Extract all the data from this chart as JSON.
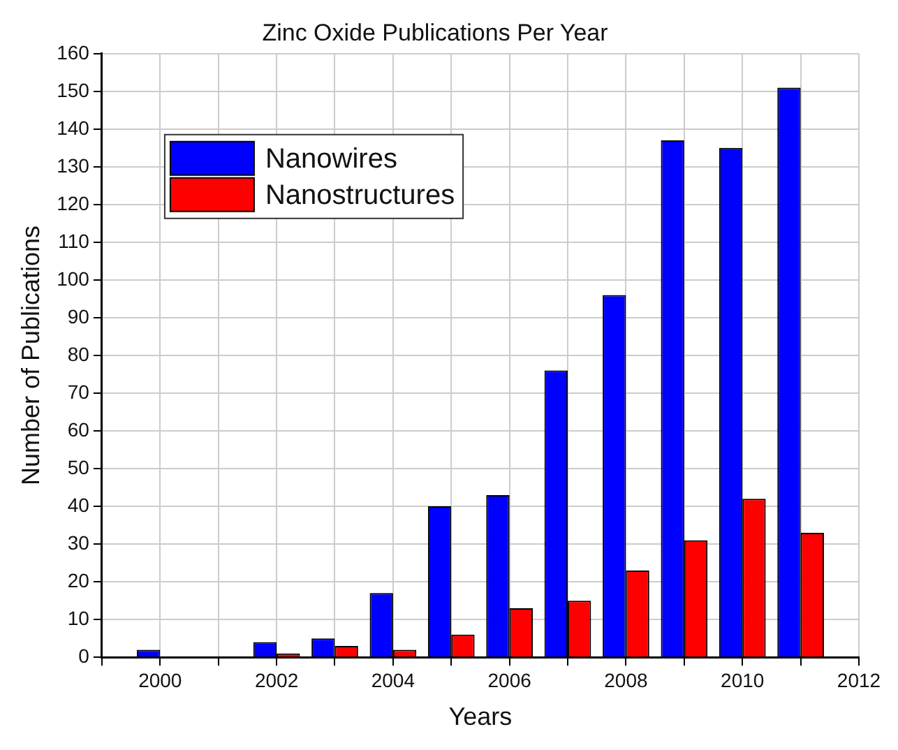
{
  "chart_data": {
    "type": "bar",
    "title": "Zinc Oxide Publications Per Year",
    "xlabel": "Years",
    "ylabel": "Number of Publications",
    "x": [
      2000,
      2001,
      2002,
      2003,
      2004,
      2005,
      2006,
      2007,
      2008,
      2009,
      2010,
      2011
    ],
    "series": [
      {
        "name": "Nanowires",
        "color": "#0000ff",
        "values": [
          2,
          0,
          4,
          5,
          17,
          40,
          43,
          76,
          96,
          137,
          135,
          151
        ]
      },
      {
        "name": "Nanostructures",
        "color": "#ff0000",
        "values": [
          0,
          0,
          1,
          3,
          2,
          6,
          13,
          15,
          23,
          31,
          42,
          33
        ]
      }
    ],
    "xlim": [
      1999,
      2012
    ],
    "xticks": [
      {
        "value": 1999,
        "label": null
      },
      2000,
      {
        "value": 2001,
        "label": null
      },
      2002,
      {
        "value": 2003,
        "label": null
      },
      2004,
      {
        "value": 2005,
        "label": null
      },
      2006,
      {
        "value": 2007,
        "label": null
      },
      2008,
      {
        "value": 2009,
        "label": null
      },
      2010,
      {
        "value": 2011,
        "label": null
      },
      2012
    ],
    "ylim": [
      0,
      160
    ],
    "yticks": [
      0,
      10,
      20,
      30,
      40,
      50,
      60,
      70,
      80,
      90,
      100,
      110,
      120,
      130,
      140,
      150,
      160
    ],
    "grid": true,
    "legend": "top left"
  }
}
